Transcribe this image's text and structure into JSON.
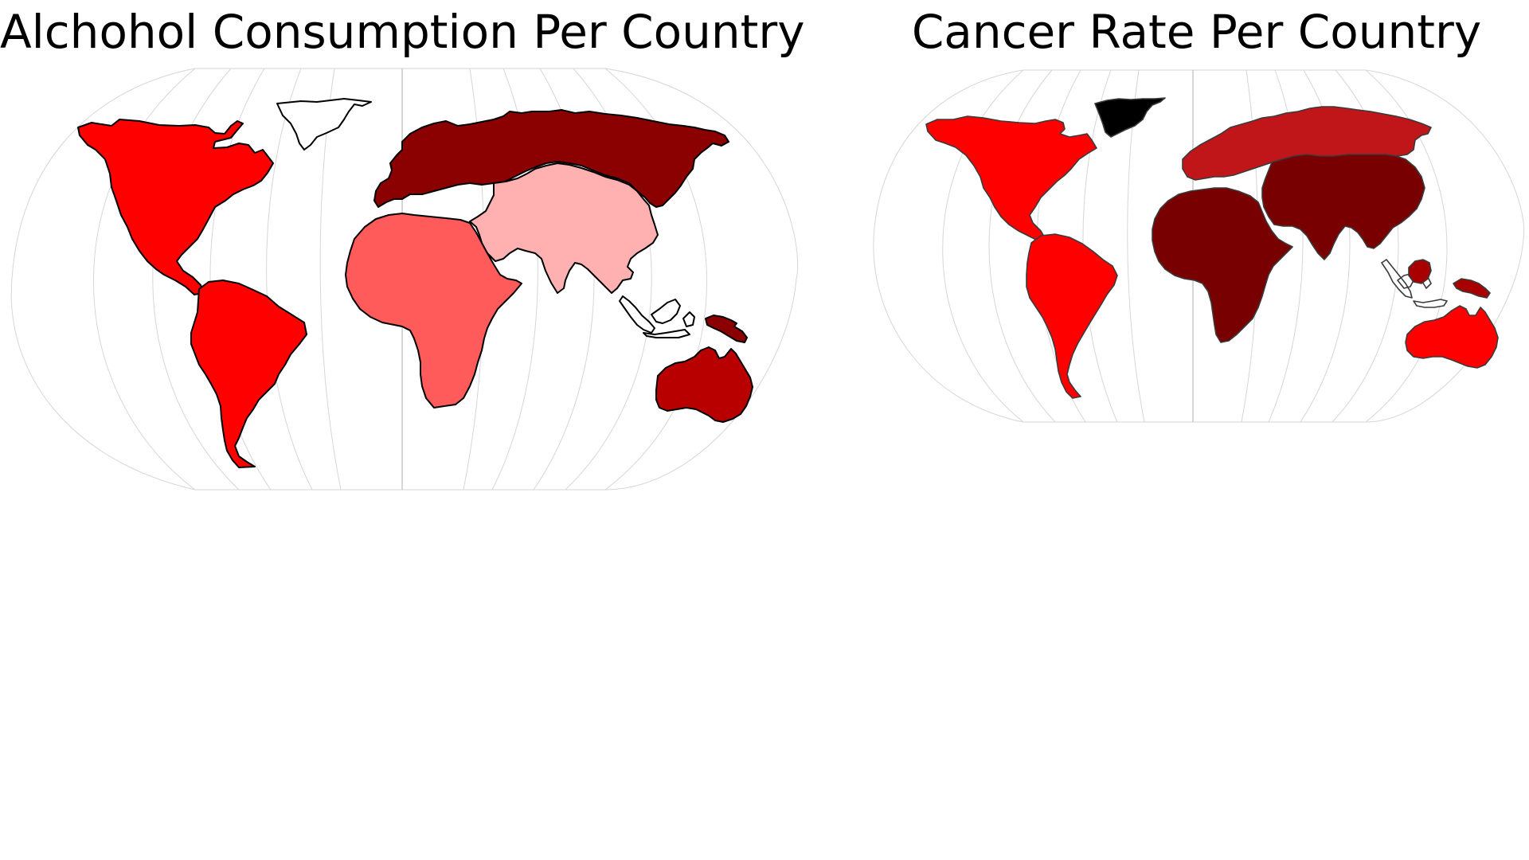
{
  "maps": [
    {
      "title": "Alchohol Consumption Per Country",
      "regions": [
        {
          "id": "north-america",
          "fill": "#ff0000"
        },
        {
          "id": "greenland",
          "fill": "#ffffff"
        },
        {
          "id": "south-america",
          "fill": "#ff0000"
        },
        {
          "id": "europe-russia",
          "fill": "#8b0000"
        },
        {
          "id": "africa",
          "fill": "#ff5b5b"
        },
        {
          "id": "asia",
          "fill": "#ffb0b0"
        },
        {
          "id": "southeast-asia-islands",
          "fill": "#ffffff"
        },
        {
          "id": "papua-new-guinea",
          "fill": "#8b0000"
        },
        {
          "id": "australia",
          "fill": "#b80000"
        }
      ]
    },
    {
      "title": "Cancer Rate Per Country",
      "regions": [
        {
          "id": "north-america",
          "fill": "#ff0000"
        },
        {
          "id": "greenland",
          "fill": "#000000"
        },
        {
          "id": "south-america",
          "fill": "#ff0000"
        },
        {
          "id": "europe-russia",
          "fill": "#c0161a"
        },
        {
          "id": "africa",
          "fill": "#780000"
        },
        {
          "id": "asia",
          "fill": "#780000"
        },
        {
          "id": "southeast-asia-islands",
          "fill": "#ffffff"
        },
        {
          "id": "borneo",
          "fill": "#a80000"
        },
        {
          "id": "papua-new-guinea",
          "fill": "#a80000"
        },
        {
          "id": "australia",
          "fill": "#ff0000"
        }
      ]
    }
  ]
}
